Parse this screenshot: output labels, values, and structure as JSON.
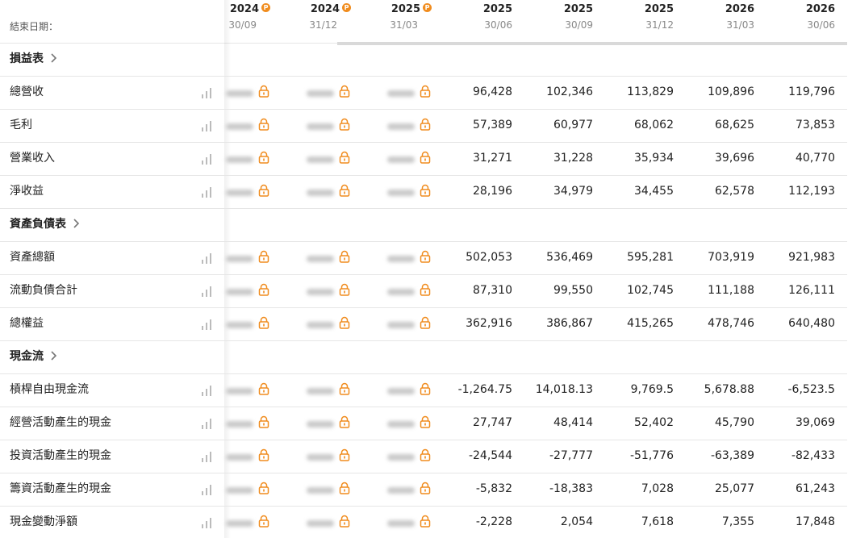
{
  "header": {
    "label": "結束日期：",
    "columns": [
      {
        "year": "2024",
        "date": "30/09",
        "badge": "P"
      },
      {
        "year": "2024",
        "date": "31/12",
        "badge": "P"
      },
      {
        "year": "2025",
        "date": "31/03",
        "badge": "P"
      },
      {
        "year": "2025",
        "date": "30/06"
      },
      {
        "year": "2025",
        "date": "30/09"
      },
      {
        "year": "2025",
        "date": "31/12"
      },
      {
        "year": "2026",
        "date": "31/03"
      },
      {
        "year": "2026",
        "date": "30/06"
      }
    ]
  },
  "sections": [
    {
      "title": "損益表",
      "rows": [
        {
          "label": "總營收",
          "values": [
            "96,428",
            "102,346",
            "113,829",
            "109,896",
            "119,796"
          ]
        },
        {
          "label": "毛利",
          "values": [
            "57,389",
            "60,977",
            "68,062",
            "68,625",
            "73,853"
          ]
        },
        {
          "label": "營業收入",
          "values": [
            "31,271",
            "31,228",
            "35,934",
            "39,696",
            "40,770"
          ]
        },
        {
          "label": "淨收益",
          "values": [
            "28,196",
            "34,979",
            "34,455",
            "62,578",
            "112,193"
          ]
        }
      ]
    },
    {
      "title": "資產負債表",
      "rows": [
        {
          "label": "資產總額",
          "values": [
            "502,053",
            "536,469",
            "595,281",
            "703,919",
            "921,983"
          ]
        },
        {
          "label": "流動負債合計",
          "values": [
            "87,310",
            "99,550",
            "102,745",
            "111,188",
            "126,111"
          ]
        },
        {
          "label": "總權益",
          "values": [
            "362,916",
            "386,867",
            "415,265",
            "478,746",
            "640,480"
          ]
        }
      ]
    },
    {
      "title": "現金流",
      "rows": [
        {
          "label": "槓桿自由現金流",
          "values": [
            "-1,264.75",
            "14,018.13",
            "9,769.5",
            "5,678.88",
            "-6,523.5"
          ]
        },
        {
          "label": "經營活動產生的現金",
          "values": [
            "27,747",
            "48,414",
            "52,402",
            "45,790",
            "39,069"
          ]
        },
        {
          "label": "投資活動產生的現金",
          "values": [
            "-24,544",
            "-27,777",
            "-51,776",
            "-63,389",
            "-82,433"
          ]
        },
        {
          "label": "籌資活動產生的現金",
          "values": [
            "-5,832",
            "-18,383",
            "7,028",
            "25,077",
            "61,243"
          ]
        },
        {
          "label": "現金變動淨額",
          "values": [
            "-2,228",
            "2,054",
            "7,618",
            "7,355",
            "17,848"
          ]
        }
      ]
    }
  ]
}
